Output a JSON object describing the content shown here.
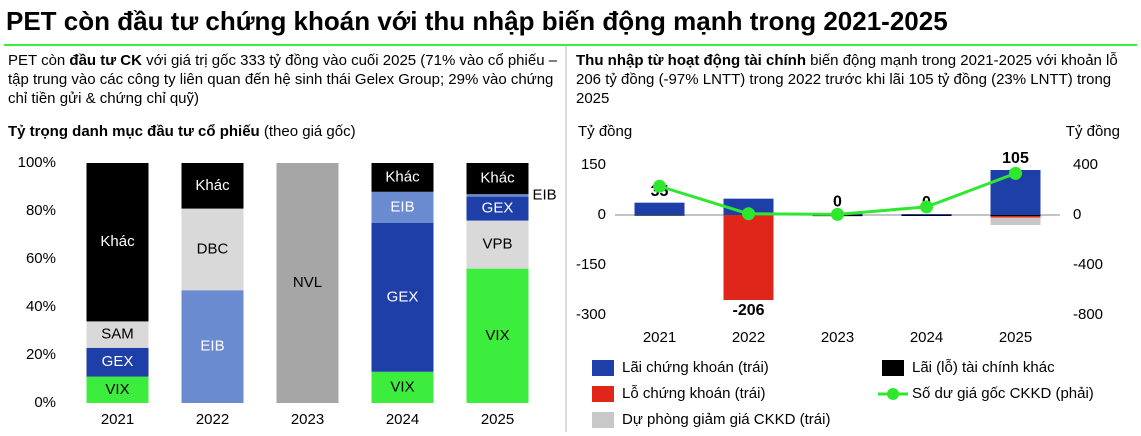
{
  "title": "PET còn đầu tư chứng khoán với thu nhập biến động mạnh trong 2021-2025",
  "left_text": {
    "before": "PET còn ",
    "bold": "đầu tư CK",
    "after": " với giá trị gốc 333 tỷ đồng vào cuối 2025 (71% vào cổ phiếu – tập trung vào các công ty liên quan đến hệ sinh thái Gelex Group; 29% vào chứng chỉ tiền gửi & chứng chỉ quỹ)"
  },
  "right_text": {
    "bold": "Thu nhập từ hoạt động tài chính",
    "after": " biến động mạnh trong 2021-2025 với khoản lỗ 206 tỷ đồng (-97% LNTT) trong 2022 trước khi lãi 105 tỷ đồng (23% LNTT)  trong 2025"
  },
  "chart_data": [
    {
      "type": "stacked_bar",
      "title": "Tỷ trọng danh mục đầu tư cổ phiếu",
      "subtitle": "(theo giá gốc)",
      "categories": [
        "2021",
        "2022",
        "2023",
        "2024",
        "2025"
      ],
      "stacks": [
        [
          {
            "label": "VIX",
            "value": 11,
            "color": "#3ded3d"
          },
          {
            "label": "GEX",
            "value": 12,
            "color": "#1f3fa8"
          },
          {
            "label": "SAM",
            "value": 11,
            "color": "#d9d9d9"
          },
          {
            "label": "Khác",
            "value": 66,
            "color": "#000000"
          }
        ],
        [
          {
            "label": "EIB",
            "value": 47,
            "color": "#6b8bd0"
          },
          {
            "label": "DBC",
            "value": 34,
            "color": "#d9d9d9"
          },
          {
            "label": "Khác",
            "value": 19,
            "color": "#000000"
          }
        ],
        [
          {
            "label": "NVL",
            "value": 100,
            "color": "#a6a6a6"
          }
        ],
        [
          {
            "label": "VIX",
            "value": 13,
            "color": "#3ded3d"
          },
          {
            "label": "GEX",
            "value": 62,
            "color": "#1f3fa8"
          },
          {
            "label": "EIB",
            "value": 13,
            "color": "#6b8bd0"
          },
          {
            "label": "Khác",
            "value": 12,
            "color": "#000000"
          }
        ],
        [
          {
            "label": "VIX",
            "value": 56,
            "color": "#3ded3d"
          },
          {
            "label": "VPB",
            "value": 20,
            "color": "#d9d9d9"
          },
          {
            "label": "GEX",
            "value": 10,
            "color": "#1f3fa8"
          },
          {
            "label": "EIB",
            "value": 1,
            "color": "#6b8bd0"
          },
          {
            "label": "Khác",
            "value": 13,
            "color": "#000000"
          }
        ]
      ],
      "ylim": [
        0,
        100
      ],
      "yticks": [
        {
          "value": 0,
          "label": "0%"
        },
        {
          "value": 20,
          "label": "20%"
        },
        {
          "value": 40,
          "label": "40%"
        },
        {
          "value": 60,
          "label": "60%"
        },
        {
          "value": 80,
          "label": "80%"
        },
        {
          "value": 100,
          "label": "100%"
        }
      ]
    },
    {
      "type": "combo",
      "y_label": "Tỷ đồng",
      "y2_label": "Tỷ đồng",
      "categories": [
        "2021",
        "2022",
        "2023",
        "2024",
        "2025"
      ],
      "series": [
        {
          "name": "Lãi chứng khoán (trái)",
          "type": "bar",
          "color": "#1f3fa8",
          "values": [
            37,
            49,
            5,
            3,
            135
          ]
        },
        {
          "name": "Lãi (lỗ) tài chính khác",
          "type": "bar",
          "color": "#000000",
          "values": [
            -2,
            0,
            -3,
            -3,
            -3
          ]
        },
        {
          "name": "Lỗ chứng khoán (trái)",
          "type": "bar",
          "color": "#e0261b",
          "values": [
            0,
            -255,
            0,
            0,
            -5
          ]
        },
        {
          "name": "Số dư giá gốc CKKD (phải)",
          "type": "line",
          "axis": "y2",
          "color": "#2ee82e",
          "values": [
            230,
            10,
            5,
            65,
            333
          ]
        },
        {
          "name": "Dự phòng giảm giá CKKD (trái)",
          "type": "bar",
          "color": "#c8c8c8",
          "values": [
            0,
            0,
            -2,
            0,
            -22
          ]
        }
      ],
      "totals": [
        35,
        -206,
        0,
        0,
        105
      ],
      "ylim": [
        -300,
        150
      ],
      "yticks": [
        150,
        0,
        -150,
        -300
      ],
      "y2lim": [
        -800,
        400
      ],
      "y2ticks": [
        400,
        0,
        -400,
        -800
      ]
    }
  ]
}
